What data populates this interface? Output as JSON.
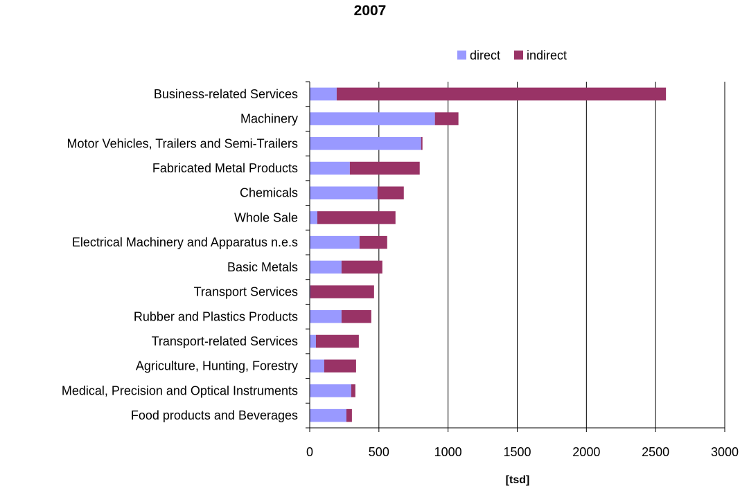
{
  "chart_data": {
    "type": "bar",
    "orientation": "horizontal",
    "stacked": true,
    "title": "2007",
    "xlabel": "[tsd]",
    "ylabel": "",
    "xlim": [
      0,
      3000
    ],
    "ticks": [
      "0",
      "500",
      "1000",
      "1500",
      "2000",
      "2500",
      "3000"
    ],
    "tick_values": [
      0,
      500,
      1000,
      1500,
      2000,
      2500,
      3000
    ],
    "grid": "vertical major gridlines",
    "legend": "top",
    "categories": [
      "Business-related Services",
      "Machinery",
      "Motor Vehicles, Trailers and Semi-Trailers",
      "Fabricated Metal Products",
      "Chemicals",
      "Whole Sale",
      "Electrical Machinery and Apparatus n.e.s",
      "Basic Metals",
      "Transport Services",
      "Rubber and Plastics Products",
      "Transport-related Services",
      "Agriculture, Hunting, Forestry",
      "Medical, Precision and Optical Instruments",
      "Food products and Beverages"
    ],
    "series": [
      {
        "name": "direct",
        "color": "#9999ff",
        "values": [
          195,
          905,
          805,
          290,
          490,
          55,
          360,
          230,
          5,
          230,
          45,
          105,
          300,
          265
        ]
      },
      {
        "name": "indirect",
        "color": "#993366",
        "values": [
          2380,
          170,
          10,
          505,
          190,
          565,
          200,
          295,
          460,
          215,
          310,
          230,
          30,
          40
        ]
      }
    ]
  }
}
